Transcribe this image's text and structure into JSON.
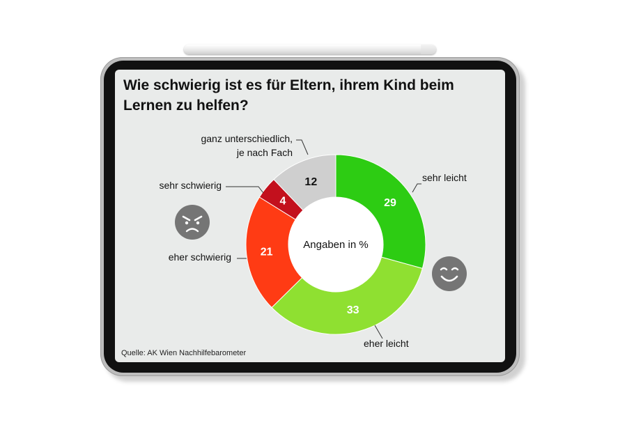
{
  "title": "Wie schwierig ist es für Eltern, ihrem Kind beim Lernen zu helfen?",
  "source": "Quelle: AK Wien Nachhilfebarometer",
  "center_label": "Angaben in %",
  "icons": {
    "left": "angry-face-icon",
    "right": "smiling-face-icon"
  },
  "colors": {
    "sehr_leicht": "#2dcc13",
    "eher_leicht": "#8fe031",
    "eher_schwierig": "#ff3b14",
    "sehr_schwierig": "#c3101d",
    "unterschiedlich": "#cfcfcf"
  },
  "chart_data": {
    "type": "pie",
    "donut": true,
    "title": "Wie schwierig ist es für Eltern, ihrem Kind beim Lernen zu helfen?",
    "unit": "%",
    "slices": [
      {
        "label": "sehr leicht",
        "value": 29,
        "color": "#2dcc13",
        "value_color": "#ffffff"
      },
      {
        "label": "eher leicht",
        "value": 33,
        "color": "#8fe031",
        "value_color": "#ffffff"
      },
      {
        "label": "eher schwierig",
        "value": 21,
        "color": "#ff3b14",
        "value_color": "#ffffff"
      },
      {
        "label": "sehr schwierig",
        "value": 4,
        "color": "#c3101d",
        "value_color": "#ffffff"
      },
      {
        "label": "ganz unterschiedlich, je nach Fach",
        "value": 12,
        "color": "#cfcfcf",
        "value_color": "#111111"
      }
    ]
  }
}
